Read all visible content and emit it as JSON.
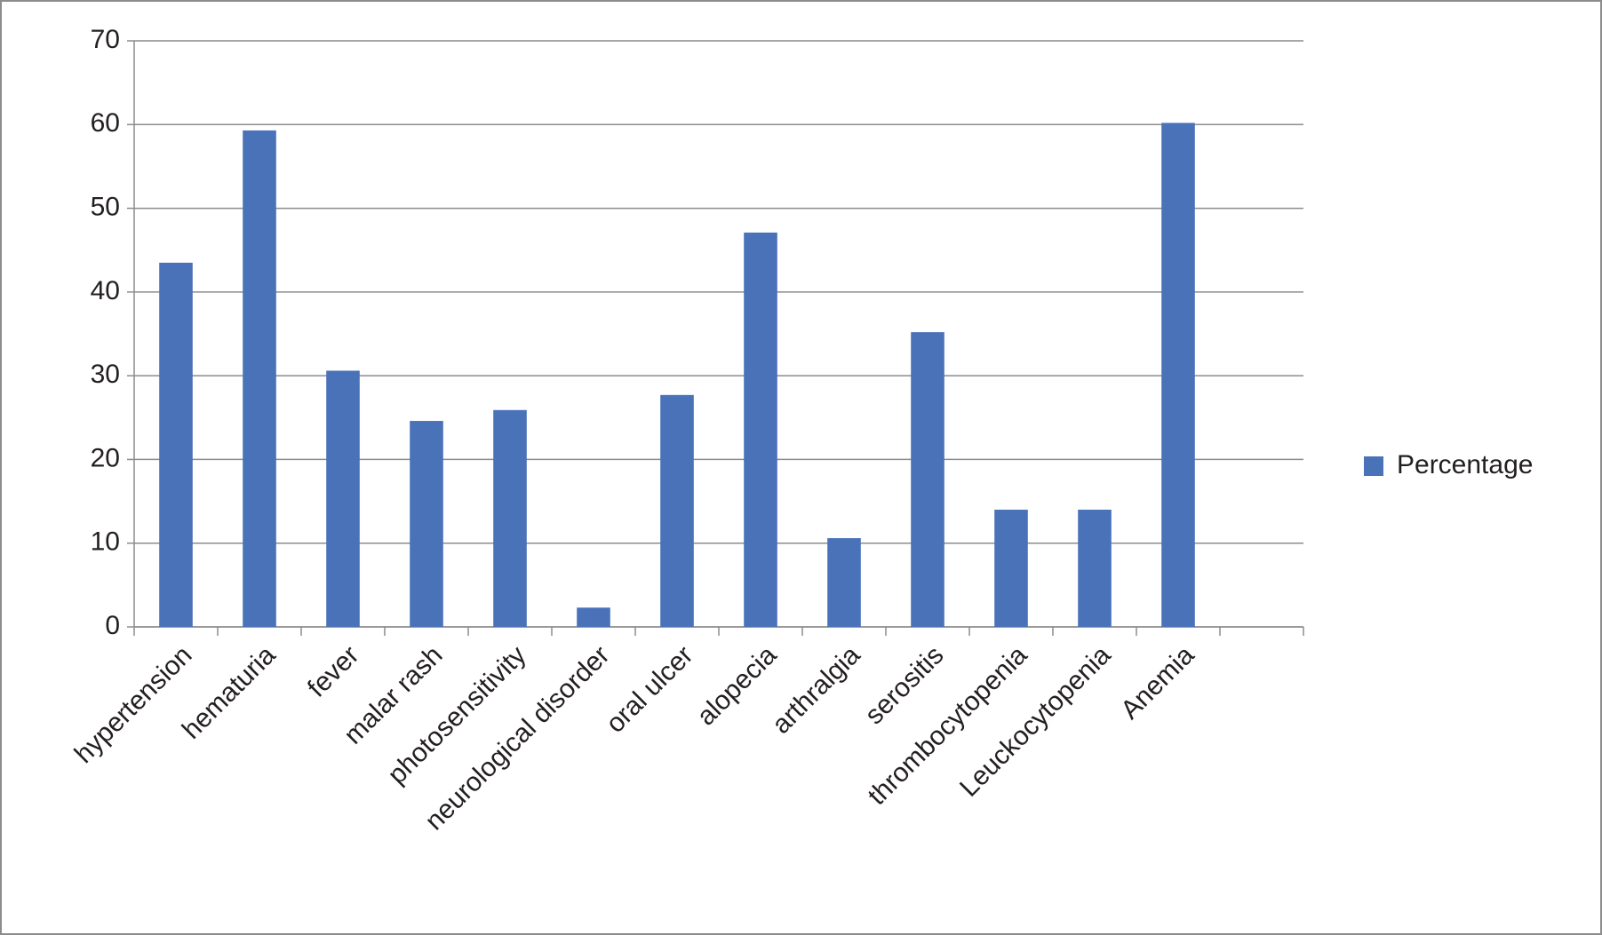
{
  "chart_data": {
    "type": "bar",
    "categories": [
      "hypertension",
      "hematuria",
      "fever",
      "malar rash",
      "photosensitivity",
      "neurological disorder",
      "oral ulcer",
      "alopecia",
      "arthralgia",
      "serositis",
      "thrombocytopenia",
      "Leuckocytopenia",
      "Anemia",
      null
    ],
    "series": [
      {
        "name": "Percentage",
        "color": "#4a72b9",
        "values": [
          43.5,
          59.3,
          30.6,
          24.6,
          25.9,
          2.3,
          27.7,
          47.1,
          10.6,
          35.2,
          14.0,
          14.0,
          60.2,
          null
        ]
      }
    ],
    "ylim": [
      0,
      70
    ],
    "yticks": [
      0,
      10,
      20,
      30,
      40,
      50,
      60,
      70
    ],
    "grid": true,
    "legend": "right"
  }
}
